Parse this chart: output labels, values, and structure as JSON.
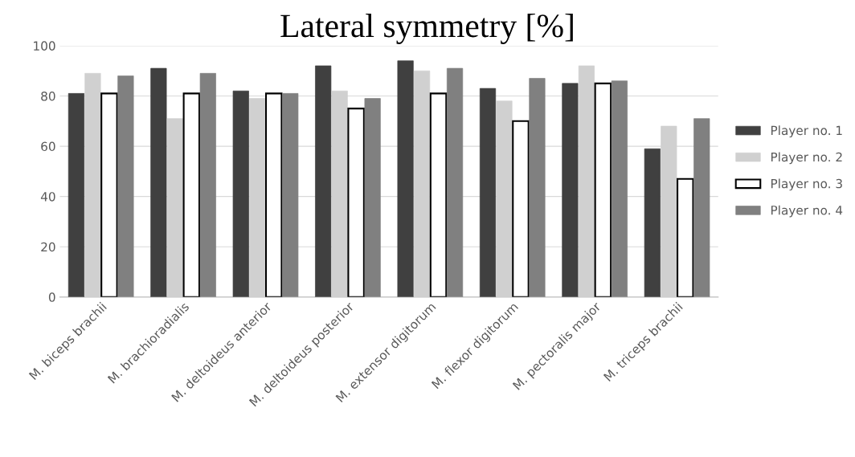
{
  "chart_data": {
    "type": "bar",
    "title": "Lateral symmetry [%]",
    "categories": [
      "M. biceps brachii",
      "M. brachioradialis",
      "M. deltoideus anterior",
      "M. deltoideus posterior",
      "M. extensor digitorum",
      "M. flexor digitorum",
      "M. pectoralis major",
      "M. triceps brachii"
    ],
    "series": [
      {
        "name": "Player no. 1",
        "color": "#404040",
        "values": [
          81,
          91,
          82,
          92,
          94,
          83,
          85,
          59
        ]
      },
      {
        "name": "Player no. 2",
        "color": "#d0d0d0",
        "values": [
          89,
          71,
          79,
          82,
          90,
          78,
          92,
          68
        ]
      },
      {
        "name": "Player no. 3",
        "color": "#ffffff",
        "values": [
          81,
          81,
          81,
          75,
          81,
          70,
          85,
          47
        ]
      },
      {
        "name": "Player no. 4",
        "color": "#808080",
        "values": [
          88,
          89,
          81,
          79,
          91,
          87,
          86,
          71
        ]
      }
    ],
    "ylim": [
      0,
      100
    ],
    "yticks": [
      0,
      20,
      40,
      60,
      80,
      100
    ],
    "grid": "y",
    "legend": "right"
  }
}
